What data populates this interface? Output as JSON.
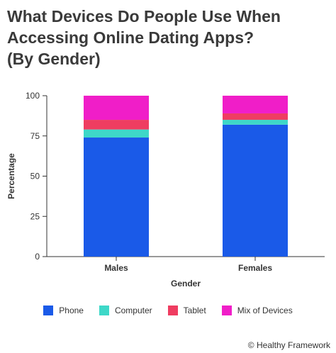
{
  "title_lines": [
    "What Devices Do People Use When",
    "Accessing Online Dating Apps?",
    "(By Gender)"
  ],
  "credit": "© Healthy Framework",
  "chart_data": {
    "type": "bar",
    "stacked": true,
    "categories": [
      "Males",
      "Females"
    ],
    "series": [
      {
        "name": "Phone",
        "color": "#1a5ae8",
        "values": [
          74,
          82
        ]
      },
      {
        "name": "Computer",
        "color": "#3ed8c8",
        "values": [
          5,
          3
        ]
      },
      {
        "name": "Tablet",
        "color": "#ef3d61",
        "values": [
          6,
          4
        ]
      },
      {
        "name": "Mix of Devices",
        "color": "#f01ec8",
        "values": [
          15,
          11
        ]
      }
    ],
    "xlabel": "Gender",
    "ylabel": "Percentage",
    "ylim": [
      0,
      100
    ],
    "yticks": [
      0,
      25,
      50,
      75,
      100
    ],
    "grid": false,
    "legend_position": "bottom"
  }
}
